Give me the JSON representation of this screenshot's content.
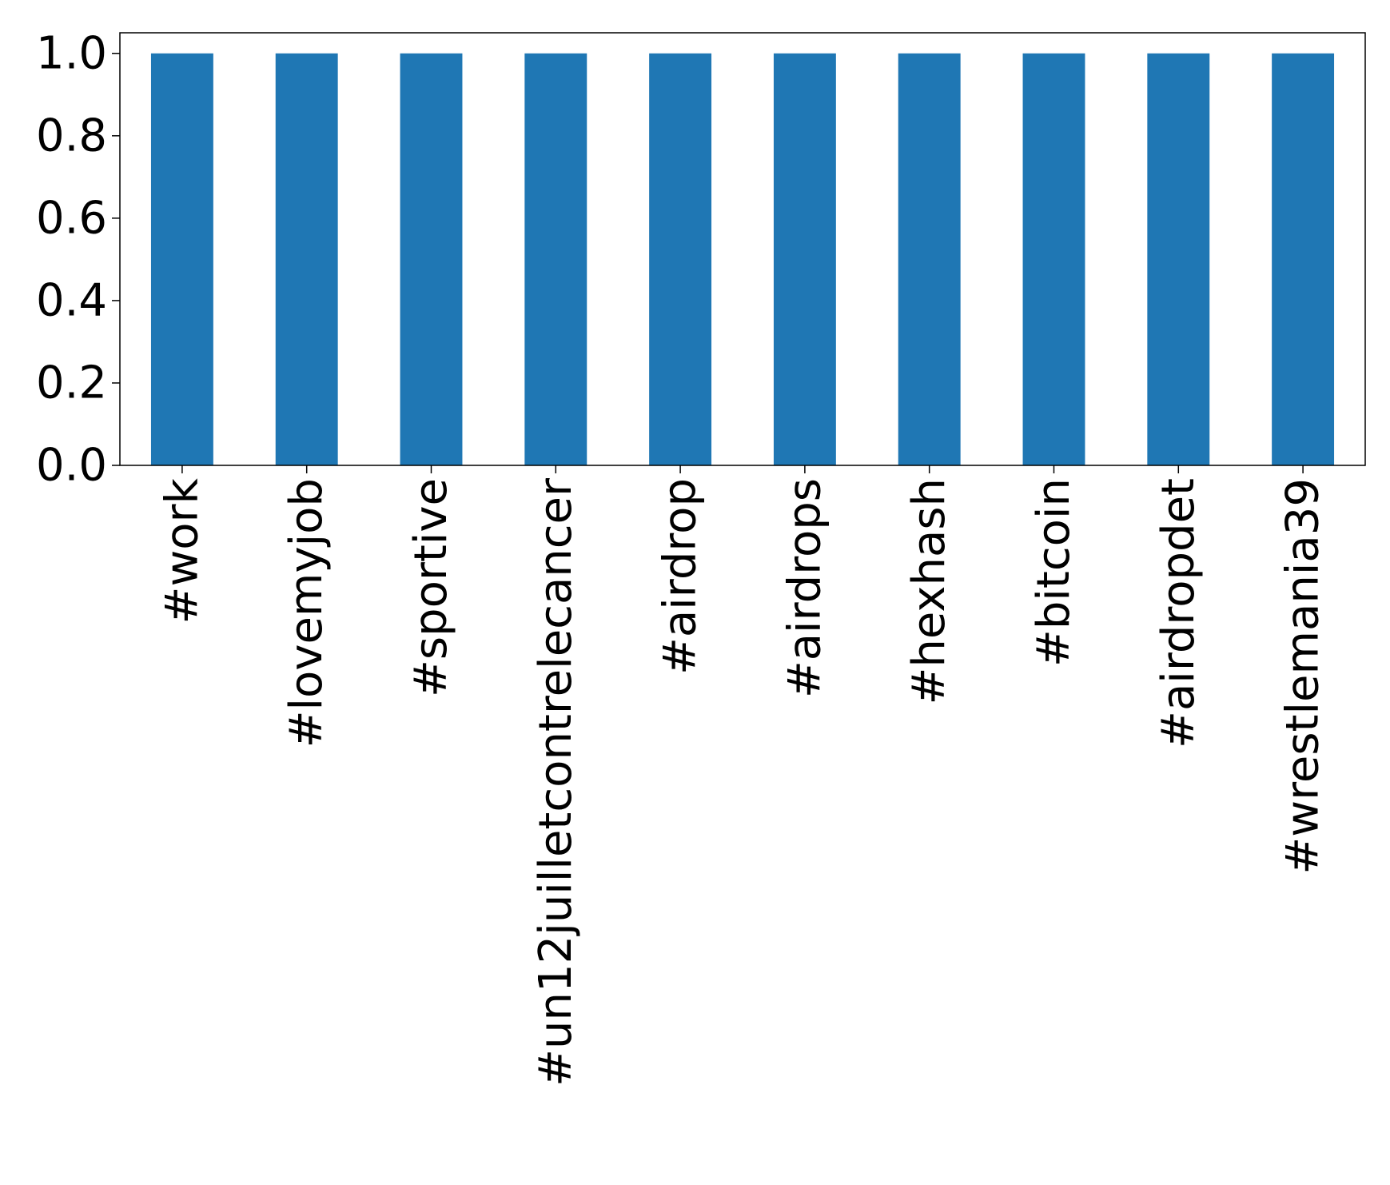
{
  "chart_data": {
    "type": "bar",
    "title": "",
    "xlabel": "",
    "ylabel": "",
    "categories": [
      "#work",
      "#lovemyjob",
      "#sportive",
      "#un12juilletcontrelecancer",
      "#airdrop",
      "#airdrops",
      "#hexhash",
      "#bitcoin",
      "#airdropdet",
      "#wrestlemania39"
    ],
    "values": [
      1.0,
      1.0,
      1.0,
      1.0,
      1.0,
      1.0,
      1.0,
      1.0,
      1.0,
      1.0
    ],
    "ylim": [
      0,
      1.05
    ],
    "yticks": [
      "0.0",
      "0.2",
      "0.4",
      "0.6",
      "0.8",
      "1.0"
    ],
    "ytick_values": [
      0.0,
      0.2,
      0.4,
      0.6,
      0.8,
      1.0
    ],
    "bar_color": "#1f77b4",
    "grid": false,
    "legend": "none"
  }
}
